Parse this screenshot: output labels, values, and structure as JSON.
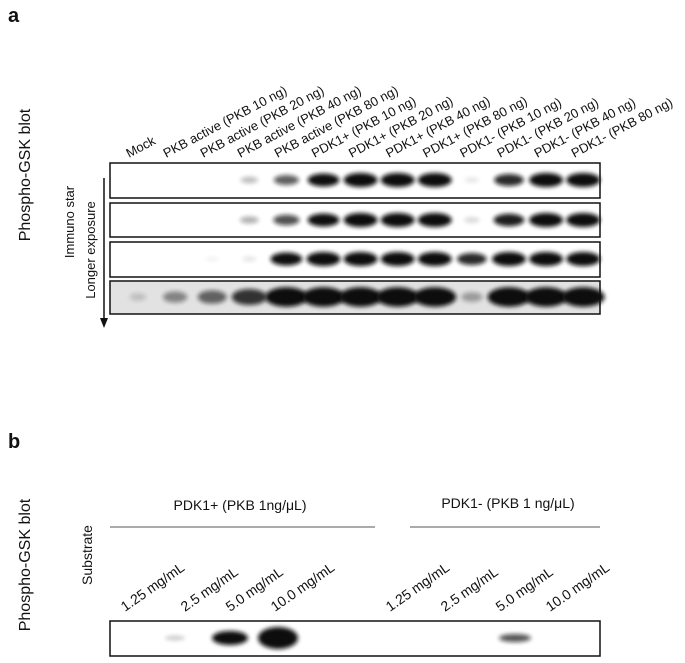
{
  "panel_a": {
    "label": "a",
    "y_label": "Phospho-GSK blot",
    "lanes": [
      "Mock",
      "PKB active (PKB 10 ng)",
      "PKB active (PKB 20 ng)",
      "PKB active (PKB 40 ng)",
      "PKB active (PKB 80 ng)",
      "PDK1+ (PKB 10 ng)",
      "PDK1+ (PKB 20 ng)",
      "PDK1+ (PKB 40 ng)",
      "PDK1+ (PKB 80 ng)",
      "PDK1- (PKB 10 ng)",
      "PDK1- (PKB 20 ng)",
      "PDK1- (PKB 40 ng)",
      "PDK1- (PKB 80 ng)"
    ],
    "exposure_labels": [
      "Immuno star",
      "Longer exposure"
    ]
  },
  "panel_b": {
    "label": "b",
    "y_label": "Phospho-GSK blot",
    "row_label": "Substrate",
    "groups": [
      "PDK1+ (PKB 1ng/μL)",
      "PDK1- (PKB 1 ng/μL)"
    ],
    "lanes": [
      "1.25 mg/mL",
      "2.5 mg/mL",
      "5.0 mg/mL",
      "10.0 mg/mL",
      "1.25 mg/mL",
      "2.5 mg/mL",
      "5.0 mg/mL",
      "10.0 mg/mL"
    ]
  }
}
